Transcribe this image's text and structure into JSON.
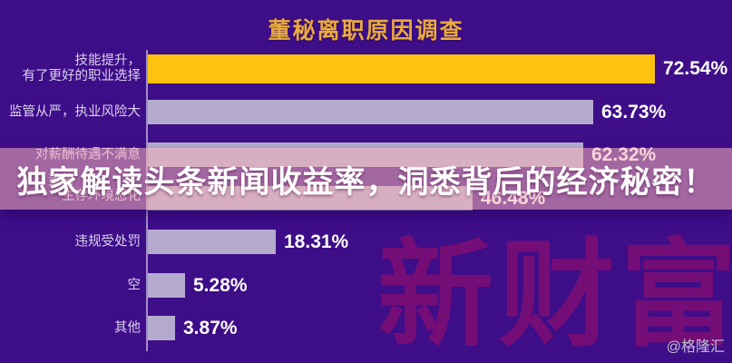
{
  "page": {
    "title": "董秘离职原因调查"
  },
  "banner": {
    "text": "独家解读头条新闻收益率，洞悉背后的经济秘密！"
  },
  "watermark": {
    "text": "新财富"
  },
  "credit": {
    "text": "@格隆汇"
  },
  "colors": {
    "background": "#3E0D88",
    "title_gold": "#E9A93F",
    "bar_normal": "#B4AACE",
    "bar_highlight": "#FFC20E",
    "label_text": "#D9D2EE",
    "value_text": "#FFFFFF",
    "banner_bg": "rgba(246,178,184,0.55)",
    "banner_text": "#FFFFFF",
    "watermark_red": "rgba(200,15,95,0.40)",
    "credit_text": "#C6BFD2"
  },
  "chart_data": {
    "type": "bar",
    "orientation": "horizontal",
    "title": "董秘离职原因调查",
    "unit": "%",
    "value_range": [
      0,
      100
    ],
    "grid": false,
    "legend": false,
    "categories": [
      "技能提升，有了更好的职业选择",
      "监管从严，执业风险大",
      "对薪酬待遇不满意",
      "董秘（首行被横幅遮挡）生存环境恶化",
      "违规受处罚",
      "空",
      "其他"
    ],
    "values": [
      72.54,
      63.73,
      62.32,
      46.48,
      18.31,
      5.28,
      3.87
    ],
    "rows": [
      {
        "label_lines": [
          "技能提升，",
          "有了更好的职业选择"
        ],
        "value": 72.54,
        "value_label": "72.54%",
        "highlight": true
      },
      {
        "label_lines": [
          "监管从严，执业风险大"
        ],
        "value": 63.73,
        "value_label": "63.73%",
        "highlight": false
      },
      {
        "label_lines": [
          "对薪酬待遇不满意"
        ],
        "value": 62.32,
        "value_label": "62.32%",
        "highlight": false
      },
      {
        "label_lines": [
          "董秘",
          "生存环境恶化"
        ],
        "value": 46.48,
        "value_label": "46.48%",
        "highlight": false
      },
      {
        "label_lines": [
          "违规受处罚"
        ],
        "value": 18.31,
        "value_label": "18.31%",
        "highlight": false
      },
      {
        "label_lines": [
          "空"
        ],
        "value": 5.28,
        "value_label": "5.28%",
        "highlight": false
      },
      {
        "label_lines": [
          "其他"
        ],
        "value": 3.87,
        "value_label": "3.87%",
        "highlight": false
      }
    ]
  }
}
